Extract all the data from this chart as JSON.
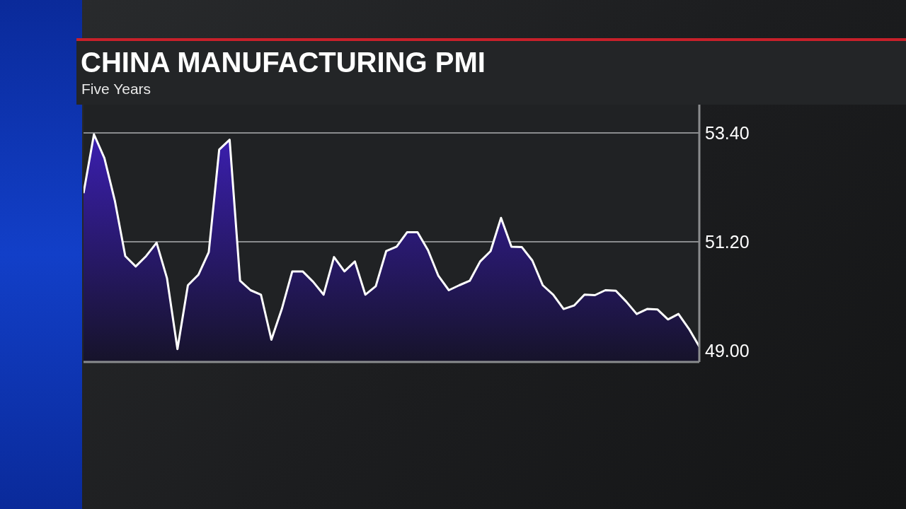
{
  "chart_data": {
    "type": "area",
    "title": "CHINA MANUFACTURING PMI",
    "subtitle": "Five Years",
    "categories": [
      null,
      null,
      null,
      null,
      null,
      null,
      null,
      null,
      null,
      null,
      null,
      null,
      null,
      null,
      null,
      null,
      null,
      null,
      null,
      null,
      null,
      null,
      null,
      null,
      null,
      null,
      null,
      null,
      null,
      null,
      null,
      null,
      null,
      null,
      null,
      null,
      null,
      null,
      null,
      null,
      null,
      null,
      null,
      null,
      null,
      null,
      null,
      null,
      null,
      null,
      null,
      null,
      null,
      null,
      null,
      null,
      null,
      null,
      null,
      null
    ],
    "series": [
      {
        "color": "#ffffff",
        "values": [
          52.18,
          53.37,
          52.89,
          52.03,
          50.91,
          50.7,
          50.91,
          51.18,
          50.46,
          49.03,
          50.32,
          50.53,
          50.99,
          53.06,
          53.26,
          50.41,
          50.22,
          50.13,
          49.22,
          49.84,
          50.6,
          50.6,
          50.39,
          50.13,
          50.89,
          50.6,
          50.8,
          50.13,
          50.3,
          51.01,
          51.1,
          51.39,
          51.39,
          51.03,
          50.51,
          50.22,
          50.32,
          50.41,
          50.8,
          51.01,
          51.68,
          51.1,
          51.09,
          50.82,
          50.32,
          50.13,
          49.84,
          49.91,
          50.13,
          50.12,
          50.22,
          50.21,
          49.99,
          49.74,
          49.84,
          49.83,
          49.63,
          49.74,
          49.44,
          49.08
        ]
      }
    ],
    "ylim": [
      48.77,
      53.97
    ],
    "yticks": [
      {
        "value": 53.4,
        "label": "53.40"
      },
      {
        "value": 51.2,
        "label": "51.20"
      },
      {
        "value": 49,
        "label": "49.00"
      }
    ],
    "grid": "y",
    "tick_labels": "y"
  }
}
